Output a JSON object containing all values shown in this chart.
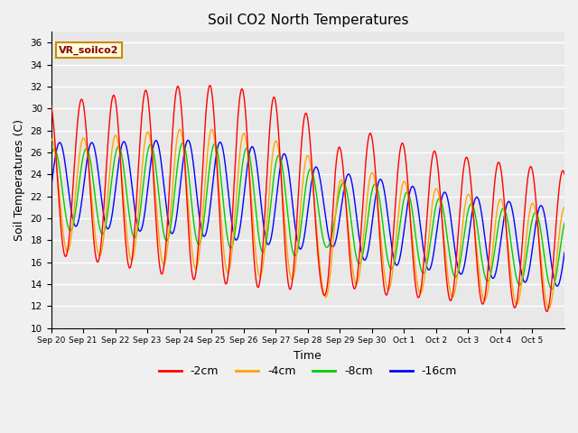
{
  "title": "Soil CO2 North Temperatures",
  "xlabel": "Time",
  "ylabel": "Soil Temperatures (C)",
  "annotation": "VR_soilco2",
  "ylim": [
    10,
    37
  ],
  "yticks": [
    10,
    12,
    14,
    16,
    18,
    20,
    22,
    24,
    26,
    28,
    30,
    32,
    34,
    36
  ],
  "colors": {
    "-2cm": "#ff0000",
    "-4cm": "#ffa500",
    "-8cm": "#00cc00",
    "-16cm": "#0000ff"
  },
  "legend_labels": [
    "-2cm",
    "-4cm",
    "-8cm",
    "-16cm"
  ],
  "fig_bg": "#f0f0f0",
  "plot_bg": "#e8e8e8",
  "n_days": 16,
  "n_points_per_day": 96
}
